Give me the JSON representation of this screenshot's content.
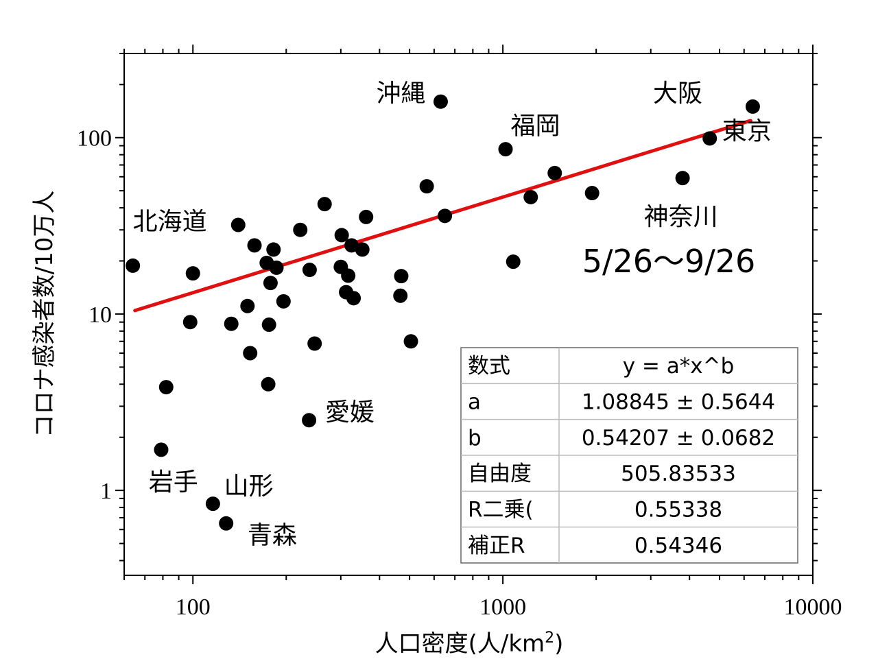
{
  "chart_data": {
    "type": "scatter",
    "xlabel": "人口密度(人/km",
    "xlabel_sup": "2",
    "xlabel_close": ")",
    "ylabel": "コロナ感染者数/10万人",
    "xscale": "log",
    "yscale": "log",
    "xlim": [
      60,
      10000
    ],
    "ylim": [
      0.33,
      300
    ],
    "x_ticks": [
      100,
      1000,
      10000
    ],
    "y_ticks": [
      1,
      10,
      100
    ],
    "x_tick_labels": [
      "100",
      "1000",
      "10000"
    ],
    "y_tick_labels": [
      "1",
      "10",
      "100"
    ],
    "grid": false,
    "point_color": "#000000",
    "fit_color": "#e01010",
    "points": [
      {
        "x": 64,
        "y": 18.8
      },
      {
        "x": 79,
        "y": 1.7
      },
      {
        "x": 82,
        "y": 3.85
      },
      {
        "x": 98,
        "y": 9.0
      },
      {
        "x": 100,
        "y": 17.0
      },
      {
        "x": 116,
        "y": 0.84
      },
      {
        "x": 128,
        "y": 0.65
      },
      {
        "x": 133,
        "y": 8.8
      },
      {
        "x": 140,
        "y": 32.0
      },
      {
        "x": 150,
        "y": 11.1
      },
      {
        "x": 153,
        "y": 6.0
      },
      {
        "x": 158,
        "y": 24.5
      },
      {
        "x": 173,
        "y": 19.5
      },
      {
        "x": 175,
        "y": 4.0
      },
      {
        "x": 176,
        "y": 8.7
      },
      {
        "x": 178,
        "y": 15.0
      },
      {
        "x": 182,
        "y": 23.2
      },
      {
        "x": 186,
        "y": 18.3
      },
      {
        "x": 196,
        "y": 11.8
      },
      {
        "x": 222,
        "y": 30.0
      },
      {
        "x": 237,
        "y": 2.5
      },
      {
        "x": 238,
        "y": 17.8
      },
      {
        "x": 247,
        "y": 6.8
      },
      {
        "x": 266,
        "y": 42.0
      },
      {
        "x": 300,
        "y": 18.5
      },
      {
        "x": 302,
        "y": 28.0
      },
      {
        "x": 312,
        "y": 13.3
      },
      {
        "x": 317,
        "y": 16.5
      },
      {
        "x": 325,
        "y": 24.5
      },
      {
        "x": 330,
        "y": 12.3
      },
      {
        "x": 352,
        "y": 23.2
      },
      {
        "x": 362,
        "y": 35.5
      },
      {
        "x": 467,
        "y": 12.7
      },
      {
        "x": 470,
        "y": 16.4
      },
      {
        "x": 505,
        "y": 7.0
      },
      {
        "x": 568,
        "y": 53.0
      },
      {
        "x": 630,
        "y": 160.0
      },
      {
        "x": 650,
        "y": 36.0
      },
      {
        "x": 1020,
        "y": 86.0
      },
      {
        "x": 1080,
        "y": 19.8
      },
      {
        "x": 1230,
        "y": 46.0
      },
      {
        "x": 1470,
        "y": 63.0
      },
      {
        "x": 1940,
        "y": 48.5
      },
      {
        "x": 3800,
        "y": 59.0
      },
      {
        "x": 4650,
        "y": 99.0
      },
      {
        "x": 6400,
        "y": 150.0
      }
    ],
    "fit": {
      "a": 1.08845,
      "b": 0.54207,
      "x_range": [
        65,
        6300
      ]
    },
    "annotations": [
      {
        "text": "北海道",
        "x": 64,
        "y": 30,
        "anchor": "start"
      },
      {
        "text": "岩手",
        "x": 72,
        "y": 1.0,
        "anchor": "start"
      },
      {
        "text": "山形",
        "x": 126,
        "y": 0.95,
        "anchor": "start"
      },
      {
        "text": "青森",
        "x": 150,
        "y": 0.5,
        "anchor": "start"
      },
      {
        "text": "愛媛",
        "x": 267,
        "y": 2.5,
        "anchor": "start"
      },
      {
        "text": "沖縄",
        "x": 390,
        "y": 160,
        "anchor": "start"
      },
      {
        "text": "福岡",
        "x": 1060,
        "y": 105,
        "anchor": "start"
      },
      {
        "text": "大阪",
        "x": 3050,
        "y": 160,
        "anchor": "start"
      },
      {
        "text": "東京",
        "x": 5100,
        "y": 98,
        "anchor": "start"
      },
      {
        "text": "神奈川",
        "x": 2850,
        "y": 32,
        "anchor": "start"
      }
    ],
    "period_label": "5/26～9/26",
    "fit_table": {
      "rows": [
        [
          "数式",
          "y = a*x^b"
        ],
        [
          "a",
          "1.08845 ± 0.5644"
        ],
        [
          "b",
          "0.54207 ± 0.0682"
        ],
        [
          "自由度",
          "505.83533"
        ],
        [
          "R二乗(",
          "0.55338"
        ],
        [
          "補正R",
          "0.54346"
        ]
      ]
    }
  }
}
